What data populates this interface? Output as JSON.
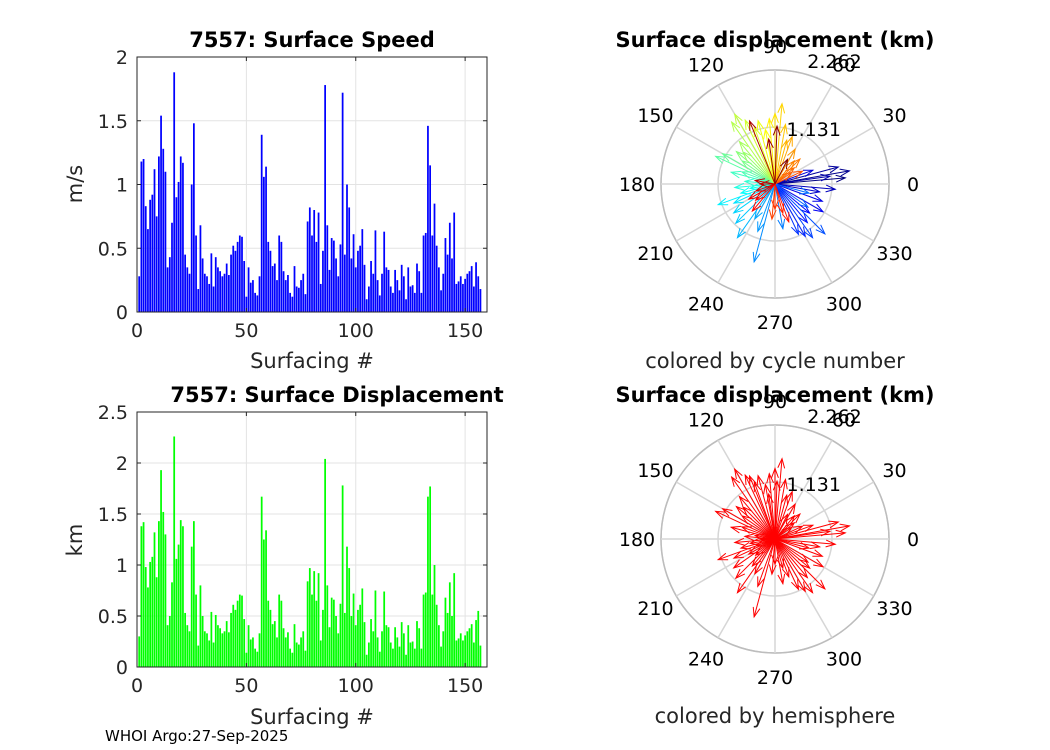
{
  "footer": "WHOI Argo:27-Sep-2025",
  "chart_data": [
    {
      "type": "bar",
      "id": "speed",
      "title": "7557: Surface Speed",
      "xlabel": "Surfacing #",
      "ylabel": "m/s",
      "xlim": [
        0,
        160
      ],
      "ylim": [
        0,
        2
      ],
      "xticks": [
        "0",
        "50",
        "100",
        "150"
      ],
      "yticks": [
        "0",
        "0.5",
        "1",
        "1.5",
        "2"
      ],
      "color": "#0000ff",
      "values": [
        0.28,
        1.18,
        1.2,
        0.83,
        0.65,
        0.88,
        0.92,
        1.12,
        0.75,
        1.22,
        1.54,
        1.28,
        1.1,
        0.35,
        0.43,
        0.7,
        1.88,
        0.9,
        1.02,
        1.22,
        1.17,
        0.45,
        0.35,
        0.3,
        1.0,
        1.48,
        0.6,
        0.18,
        0.68,
        0.42,
        0.3,
        0.28,
        0.22,
        0.46,
        0.2,
        0.43,
        0.35,
        0.32,
        0.28,
        0.3,
        0.38,
        0.29,
        0.45,
        0.52,
        0.48,
        0.55,
        0.6,
        0.59,
        0.4,
        0.12,
        0.35,
        0.23,
        0.25,
        0.15,
        0.13,
        0.28,
        1.39,
        1.06,
        1.14,
        0.55,
        0.48,
        0.36,
        0.38,
        0.25,
        0.6,
        0.55,
        0.32,
        0.25,
        0.29,
        0.15,
        0.12,
        0.36,
        0.2,
        0.19,
        0.25,
        0.3,
        0.14,
        0.71,
        0.82,
        0.6,
        0.8,
        0.55,
        0.78,
        0.22,
        0.48,
        1.78,
        0.68,
        0.33,
        0.58,
        0.56,
        0.42,
        0.28,
        0.53,
        1.72,
        0.45,
        1.0,
        0.82,
        0.42,
        0.61,
        0.35,
        0.48,
        0.52,
        0.65,
        0.37,
        0.1,
        0.2,
        0.4,
        0.3,
        0.64,
        0.25,
        0.13,
        0.3,
        0.63,
        0.35,
        0.33,
        0.2,
        0.15,
        0.33,
        0.25,
        0.17,
        0.37,
        0.28,
        0.1,
        0.35,
        0.2,
        0.21,
        0.15,
        0.38,
        0.32,
        0.15,
        0.6,
        0.62,
        1.46,
        1.15,
        0.6,
        0.85,
        0.52,
        0.35,
        0.17,
        0.3,
        0.58,
        0.45,
        0.7,
        0.42,
        0.78,
        0.22,
        0.24,
        0.28,
        0.22,
        0.26,
        0.3,
        0.32,
        0.36,
        0.2,
        0.39,
        0.28,
        0.18
      ]
    },
    {
      "type": "bar",
      "id": "displacement",
      "title": "7557: Surface Displacement",
      "xlabel": "Surfacing #",
      "ylabel": "km",
      "xlim": [
        0,
        160
      ],
      "ylim": [
        0,
        2.5
      ],
      "xticks": [
        "0",
        "50",
        "100",
        "150"
      ],
      "yticks": [
        "0",
        "0.5",
        "1",
        "1.5",
        "2",
        "2.5"
      ],
      "color": "#00ff00",
      "values": [
        0.3,
        1.38,
        1.42,
        0.98,
        0.78,
        1.03,
        1.08,
        1.32,
        0.88,
        1.43,
        1.93,
        1.52,
        1.3,
        0.41,
        0.5,
        0.83,
        2.26,
        1.06,
        1.2,
        1.44,
        1.38,
        0.53,
        0.41,
        0.35,
        1.18,
        1.43,
        0.71,
        0.21,
        0.8,
        0.5,
        0.35,
        0.33,
        0.26,
        0.54,
        0.24,
        0.51,
        0.41,
        0.38,
        0.33,
        0.35,
        0.45,
        0.34,
        0.53,
        0.61,
        0.56,
        0.65,
        0.71,
        0.7,
        0.47,
        0.14,
        0.41,
        0.27,
        0.29,
        0.18,
        0.15,
        0.33,
        1.67,
        1.25,
        1.34,
        0.65,
        0.56,
        0.42,
        0.45,
        0.29,
        0.71,
        0.65,
        0.38,
        0.29,
        0.34,
        0.18,
        0.14,
        0.42,
        0.24,
        0.22,
        0.29,
        0.35,
        0.16,
        0.84,
        0.97,
        0.71,
        0.94,
        0.65,
        0.92,
        0.26,
        0.56,
        2.04,
        0.8,
        0.39,
        0.68,
        0.66,
        0.5,
        0.33,
        0.62,
        1.78,
        0.53,
        1.18,
        0.97,
        0.5,
        0.72,
        0.41,
        0.56,
        0.61,
        0.77,
        0.44,
        0.12,
        0.24,
        0.47,
        0.35,
        0.75,
        0.29,
        0.15,
        0.35,
        0.74,
        0.41,
        0.39,
        0.24,
        0.18,
        0.39,
        0.29,
        0.2,
        0.44,
        0.33,
        0.12,
        0.41,
        0.24,
        0.25,
        0.18,
        0.45,
        0.38,
        0.18,
        0.71,
        0.73,
        1.67,
        1.77,
        0.71,
        1.0,
        0.61,
        0.41,
        0.2,
        0.35,
        0.68,
        0.53,
        0.83,
        0.5,
        0.92,
        0.26,
        0.28,
        0.33,
        0.26,
        0.31,
        0.35,
        0.38,
        0.42,
        0.24,
        0.46,
        0.55,
        0.21
      ]
    },
    {
      "type": "polar",
      "id": "polar-cycle",
      "title": "Surface displacement (km)",
      "caption": "colored by cycle number",
      "rmax": 2.262,
      "rticks": [
        "1.131",
        "2.262"
      ],
      "angle_labels": [
        "0",
        "30",
        "60",
        "90",
        "120",
        "150",
        "180",
        "210",
        "240",
        "270",
        "300",
        "330"
      ],
      "vectors_deg_km": [
        [
          5,
          1.4
        ],
        [
          10,
          1.5
        ],
        [
          15,
          1.3
        ],
        [
          8,
          1.1
        ],
        [
          355,
          1.2
        ],
        [
          350,
          0.9
        ],
        [
          20,
          0.8
        ],
        [
          340,
          1.0
        ],
        [
          330,
          1.1
        ],
        [
          320,
          0.9
        ],
        [
          310,
          1.0
        ],
        [
          300,
          1.2
        ],
        [
          295,
          1.1
        ],
        [
          305,
          1.3
        ],
        [
          315,
          1.4
        ],
        [
          325,
          0.8
        ],
        [
          345,
          0.7
        ],
        [
          280,
          0.9
        ],
        [
          255,
          1.6
        ],
        [
          250,
          1.0
        ],
        [
          240,
          0.8
        ],
        [
          235,
          1.3
        ],
        [
          225,
          1.1
        ],
        [
          215,
          1.0
        ],
        [
          205,
          0.9
        ],
        [
          200,
          1.2
        ],
        [
          195,
          0.7
        ],
        [
          190,
          0.5
        ],
        [
          185,
          0.8
        ],
        [
          175,
          0.6
        ],
        [
          165,
          0.9
        ],
        [
          160,
          0.7
        ],
        [
          155,
          1.3
        ],
        [
          150,
          1.2
        ],
        [
          145,
          0.8
        ],
        [
          140,
          1.0
        ],
        [
          135,
          0.9
        ],
        [
          130,
          1.1
        ],
        [
          125,
          1.5
        ],
        [
          120,
          1.6
        ],
        [
          115,
          1.4
        ],
        [
          110,
          1.2
        ],
        [
          105,
          1.3
        ],
        [
          100,
          1.1
        ],
        [
          95,
          1.3
        ],
        [
          90,
          1.4
        ],
        [
          85,
          1.6
        ],
        [
          80,
          1.2
        ],
        [
          75,
          0.9
        ],
        [
          70,
          1.0
        ],
        [
          60,
          0.8
        ],
        [
          50,
          0.6
        ],
        [
          45,
          0.7
        ],
        [
          40,
          0.5
        ],
        [
          35,
          0.4
        ],
        [
          25,
          0.6
        ],
        [
          265,
          0.7
        ],
        [
          270,
          0.5
        ],
        [
          285,
          0.6
        ],
        [
          290,
          0.8
        ],
        [
          230,
          0.7
        ],
        [
          220,
          0.5
        ],
        [
          210,
          0.6
        ],
        [
          200,
          0.4
        ],
        [
          180,
          0.3
        ],
        [
          170,
          0.4
        ],
        [
          112,
          1.35
        ],
        [
          98,
          0.9
        ],
        [
          88,
          1.15
        ],
        [
          63,
          0.55
        ]
      ]
    },
    {
      "type": "polar",
      "id": "polar-hemi",
      "title": "Surface displacement (km)",
      "caption": "colored by hemisphere",
      "rmax": 2.262,
      "rticks": [
        "1.131",
        "2.262"
      ],
      "angle_labels": [
        "0",
        "30",
        "60",
        "90",
        "120",
        "150",
        "180",
        "210",
        "240",
        "270",
        "300",
        "330"
      ],
      "color": "#ff0000"
    }
  ]
}
